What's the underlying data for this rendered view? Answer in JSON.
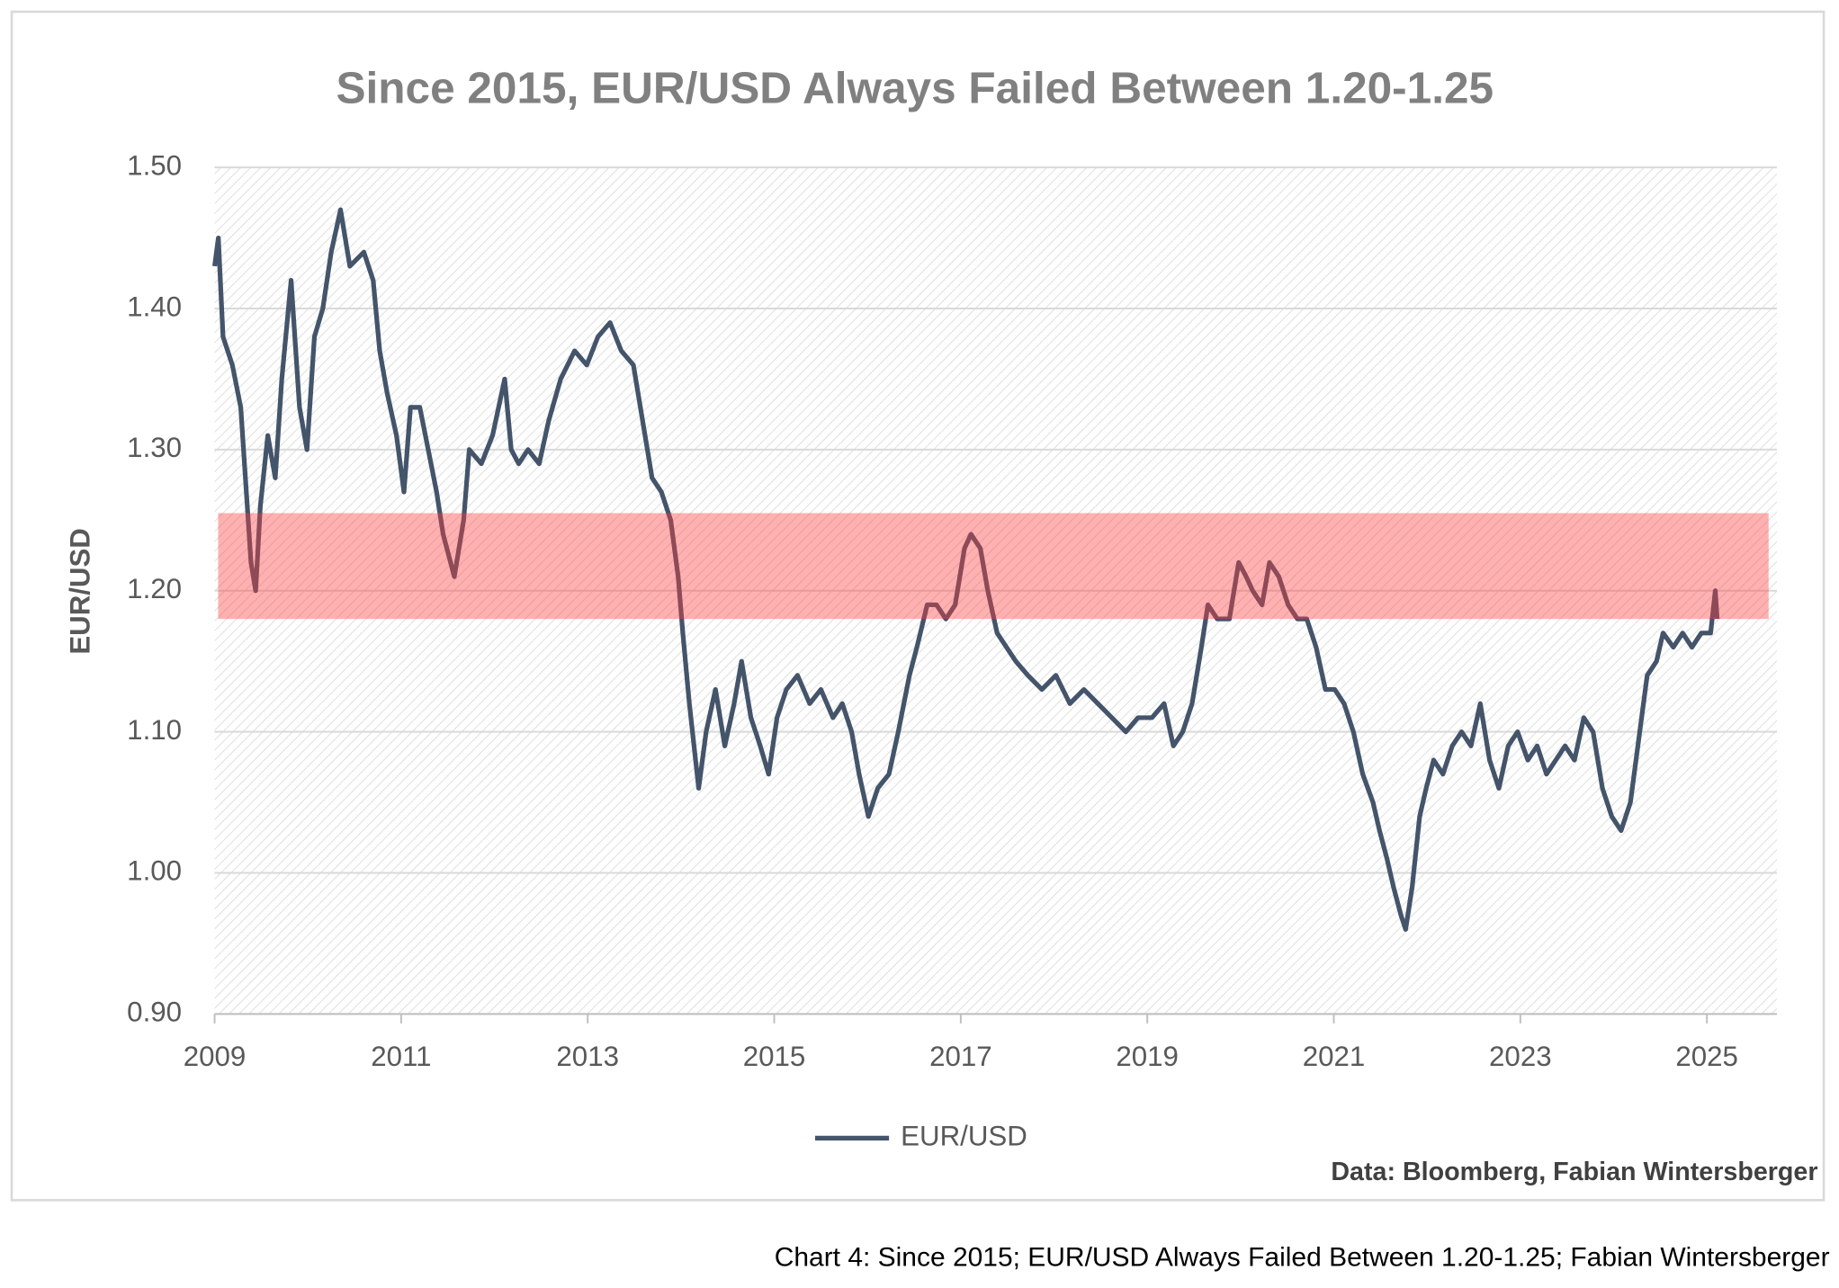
{
  "chart_data": {
    "type": "line",
    "title": "Since 2015, EUR/USD Always Failed Between 1.20-1.25",
    "y_label": "EUR/USD",
    "source": "Data: Bloomberg, Fabian Wintersberger",
    "caption": "Chart 4: Since 2015; EUR/USD Always Failed Between 1.20-1.25; Fabian Wintersberger",
    "xlim": [
      2009,
      2025.75
    ],
    "xticks": [
      2009,
      2011,
      2013,
      2015,
      2017,
      2019,
      2021,
      2023,
      2025
    ],
    "ylim": [
      0.9,
      1.5
    ],
    "yticks": [
      {
        "value": 0.9,
        "label": "0.90"
      },
      {
        "value": 1.0,
        "label": "1.00"
      },
      {
        "value": 1.1,
        "label": "1.10"
      },
      {
        "value": 1.2,
        "label": "1.20"
      },
      {
        "value": 1.3,
        "label": "1.30"
      },
      {
        "value": 1.4,
        "label": "1.40"
      },
      {
        "value": 1.5,
        "label": "1.50"
      }
    ],
    "grid": true,
    "legend": "bottom",
    "band": {
      "from": 1.18,
      "to": 1.255,
      "color": "#ff3b3b"
    },
    "x": [
      2009.0,
      2009.04,
      2009.09,
      2009.19,
      2009.28,
      2009.34,
      2009.39,
      2009.44,
      2009.49,
      2009.57,
      2009.65,
      2009.72,
      2009.82,
      2009.91,
      2009.99,
      2010.07,
      2010.16,
      2010.25,
      2010.35,
      2010.45,
      2010.6,
      2010.7,
      2010.77,
      2010.85,
      2010.95,
      2011.03,
      2011.1,
      2011.2,
      2011.29,
      2011.38,
      2011.45,
      2011.57,
      2011.67,
      2011.73,
      2011.86,
      2011.98,
      2012.11,
      2012.18,
      2012.26,
      2012.36,
      2012.48,
      2012.58,
      2012.71,
      2012.86,
      2012.99,
      2013.11,
      2013.24,
      2013.36,
      2013.49,
      2013.59,
      2013.69,
      2013.79,
      2013.89,
      2013.97,
      2014.02,
      2014.09,
      2014.19,
      2014.27,
      2014.37,
      2014.47,
      2014.57,
      2014.65,
      2014.75,
      2014.85,
      2014.94,
      2015.03,
      2015.13,
      2015.25,
      2015.38,
      2015.5,
      2015.63,
      2015.73,
      2015.83,
      2015.91,
      2016.01,
      2016.11,
      2016.23,
      2016.33,
      2016.45,
      2016.53,
      2016.64,
      2016.74,
      2016.84,
      2016.94,
      2017.04,
      2017.11,
      2017.21,
      2017.29,
      2017.39,
      2017.49,
      2017.59,
      2017.72,
      2017.87,
      2018.02,
      2018.17,
      2018.32,
      2018.47,
      2018.62,
      2018.77,
      2018.9,
      2019.05,
      2019.18,
      2019.28,
      2019.38,
      2019.48,
      2019.58,
      2019.65,
      2019.75,
      2019.88,
      2019.98,
      2020.06,
      2020.13,
      2020.23,
      2020.31,
      2020.41,
      2020.51,
      2020.61,
      2020.71,
      2020.81,
      2020.91,
      2021.01,
      2021.11,
      2021.21,
      2021.31,
      2021.42,
      2021.49,
      2021.57,
      2021.64,
      2021.72,
      2021.77,
      2021.84,
      2021.92,
      2021.99,
      2022.07,
      2022.17,
      2022.27,
      2022.37,
      2022.47,
      2022.57,
      2022.67,
      2022.77,
      2022.87,
      2022.97,
      2023.08,
      2023.18,
      2023.28,
      2023.38,
      2023.48,
      2023.58,
      2023.68,
      2023.78,
      2023.88,
      2023.98,
      2024.08,
      2024.18,
      2024.28,
      2024.36,
      2024.46,
      2024.53,
      2024.64,
      2024.74,
      2024.84,
      2024.94,
      2025.04,
      2025.09,
      2025.11
    ],
    "series": [
      {
        "name": "EUR/USD",
        "color": "#44546a",
        "values": [
          1.43,
          1.45,
          1.38,
          1.36,
          1.33,
          1.27,
          1.22,
          1.2,
          1.26,
          1.31,
          1.28,
          1.35,
          1.42,
          1.33,
          1.3,
          1.38,
          1.4,
          1.44,
          1.47,
          1.43,
          1.44,
          1.42,
          1.37,
          1.34,
          1.31,
          1.27,
          1.33,
          1.33,
          1.3,
          1.27,
          1.24,
          1.21,
          1.25,
          1.3,
          1.29,
          1.31,
          1.35,
          1.3,
          1.29,
          1.3,
          1.29,
          1.32,
          1.35,
          1.37,
          1.36,
          1.38,
          1.39,
          1.37,
          1.36,
          1.32,
          1.28,
          1.27,
          1.25,
          1.21,
          1.17,
          1.12,
          1.06,
          1.1,
          1.13,
          1.09,
          1.12,
          1.15,
          1.11,
          1.09,
          1.07,
          1.11,
          1.13,
          1.14,
          1.12,
          1.13,
          1.11,
          1.12,
          1.1,
          1.07,
          1.04,
          1.06,
          1.07,
          1.1,
          1.14,
          1.16,
          1.19,
          1.19,
          1.18,
          1.19,
          1.23,
          1.24,
          1.23,
          1.2,
          1.17,
          1.16,
          1.15,
          1.14,
          1.13,
          1.14,
          1.12,
          1.13,
          1.12,
          1.11,
          1.1,
          1.11,
          1.11,
          1.12,
          1.09,
          1.1,
          1.12,
          1.16,
          1.19,
          1.18,
          1.18,
          1.22,
          1.21,
          1.2,
          1.19,
          1.22,
          1.21,
          1.19,
          1.18,
          1.18,
          1.16,
          1.13,
          1.13,
          1.12,
          1.1,
          1.07,
          1.05,
          1.03,
          1.01,
          0.99,
          0.97,
          0.96,
          0.99,
          1.04,
          1.06,
          1.08,
          1.07,
          1.09,
          1.1,
          1.09,
          1.12,
          1.08,
          1.06,
          1.09,
          1.1,
          1.08,
          1.09,
          1.07,
          1.08,
          1.09,
          1.08,
          1.11,
          1.1,
          1.06,
          1.04,
          1.03,
          1.05,
          1.1,
          1.14,
          1.15,
          1.17,
          1.16,
          1.17,
          1.16,
          1.17,
          1.17,
          1.2,
          1.18
        ]
      }
    ]
  }
}
